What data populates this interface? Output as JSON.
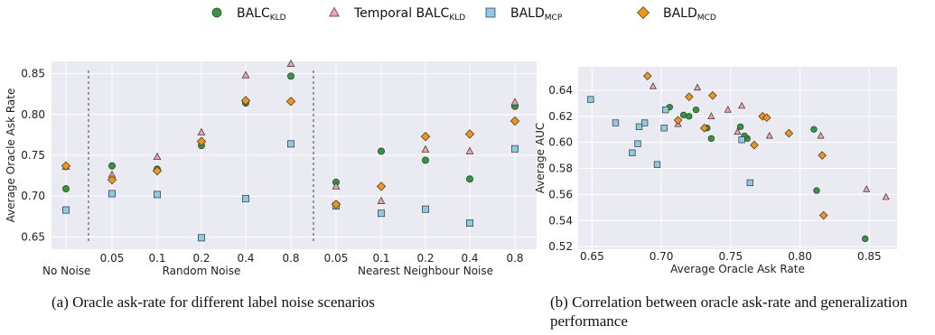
{
  "legend": [
    {
      "name": "BALC",
      "sub": "KLD",
      "marker": "circle",
      "color": "#2e9a3a"
    },
    {
      "name": "Temporal BALC",
      "sub": "KLD",
      "marker": "triangle",
      "color": "#f0a3a8"
    },
    {
      "name": "BALD",
      "sub": "MCP",
      "marker": "square",
      "color": "#8ccbe6"
    },
    {
      "name": "BALD",
      "sub": "MCD",
      "marker": "diamond",
      "color": "#f5950f"
    }
  ],
  "captions": {
    "a": "(a) Oracle ask-rate for different label noise scenarios",
    "b": "(b) Correlation between oracle ask-rate and generalization performance"
  },
  "chart_data": [
    {
      "id": "a",
      "type": "scatter",
      "ylabel": "Average Oracle Ask Rate",
      "ylim": [
        0.635,
        0.865
      ],
      "yticks": [
        0.65,
        0.7,
        0.75,
        0.8,
        0.85
      ],
      "grid": true,
      "group_labels": [
        "No Noise",
        "Random Noise",
        "Nearest Neighbour Noise"
      ],
      "categories": [
        "0.05",
        "0.1",
        "0.2",
        "0.4",
        "0.8",
        "0.05",
        "0.1",
        "0.2",
        "0.4",
        "0.8"
      ],
      "series": [
        {
          "name": "BALC KLD",
          "x": [
            0,
            1,
            2,
            3,
            4,
            5,
            6,
            7,
            8,
            9,
            10
          ],
          "y": [
            0.709,
            0.737,
            0.733,
            0.762,
            0.814,
            0.847,
            0.717,
            0.755,
            0.744,
            0.721,
            0.81
          ]
        },
        {
          "name": "Temporal BALC KLD",
          "x": [
            0,
            1,
            2,
            3,
            4,
            5,
            6,
            7,
            8,
            9,
            10
          ],
          "y": [
            0.736,
            0.726,
            0.748,
            0.778,
            0.848,
            0.862,
            0.712,
            0.694,
            0.757,
            0.755,
            0.815
          ]
        },
        {
          "name": "BALD MCP",
          "x": [
            0,
            1,
            2,
            3,
            4,
            5,
            6,
            7,
            8,
            9,
            10
          ],
          "y": [
            0.683,
            0.703,
            0.702,
            0.649,
            0.697,
            0.764,
            0.688,
            0.679,
            0.684,
            0.667,
            0.758
          ]
        },
        {
          "name": "BALD MCD",
          "x": [
            0,
            1,
            2,
            3,
            4,
            5,
            6,
            7,
            8,
            9,
            10
          ],
          "y": [
            0.737,
            0.72,
            0.731,
            0.767,
            0.817,
            0.816,
            0.69,
            0.712,
            0.773,
            0.776,
            0.792
          ]
        }
      ]
    },
    {
      "id": "b",
      "type": "scatter",
      "xlabel": "Average Oracle Ask Rate",
      "ylabel": "Average AUC",
      "xlim": [
        0.64,
        0.87
      ],
      "ylim": [
        0.518,
        0.658
      ],
      "xticks": [
        0.65,
        0.7,
        0.75,
        0.8,
        0.85
      ],
      "yticks": [
        0.52,
        0.54,
        0.56,
        0.58,
        0.6,
        0.62,
        0.64
      ],
      "grid": true,
      "series": [
        {
          "name": "BALC KLD",
          "x": [
            0.706,
            0.716,
            0.72,
            0.725,
            0.733,
            0.736,
            0.757,
            0.762,
            0.76,
            0.81,
            0.812,
            0.847
          ],
          "y": [
            0.627,
            0.621,
            0.62,
            0.625,
            0.611,
            0.603,
            0.612,
            0.603,
            0.605,
            0.61,
            0.563,
            0.526
          ]
        },
        {
          "name": "Temporal BALC KLD",
          "x": [
            0.694,
            0.712,
            0.726,
            0.736,
            0.748,
            0.755,
            0.758,
            0.778,
            0.815,
            0.848,
            0.862
          ],
          "y": [
            0.643,
            0.614,
            0.642,
            0.62,
            0.625,
            0.608,
            0.628,
            0.605,
            0.605,
            0.564,
            0.558
          ]
        },
        {
          "name": "BALD MCP",
          "x": [
            0.649,
            0.667,
            0.679,
            0.683,
            0.684,
            0.688,
            0.697,
            0.702,
            0.703,
            0.758,
            0.764
          ],
          "y": [
            0.633,
            0.615,
            0.592,
            0.599,
            0.612,
            0.615,
            0.583,
            0.611,
            0.625,
            0.602,
            0.569
          ]
        },
        {
          "name": "BALD MCD",
          "x": [
            0.69,
            0.712,
            0.72,
            0.731,
            0.737,
            0.767,
            0.773,
            0.776,
            0.792,
            0.816,
            0.817
          ],
          "y": [
            0.651,
            0.617,
            0.635,
            0.611,
            0.636,
            0.598,
            0.62,
            0.619,
            0.607,
            0.59,
            0.544
          ]
        }
      ]
    }
  ]
}
